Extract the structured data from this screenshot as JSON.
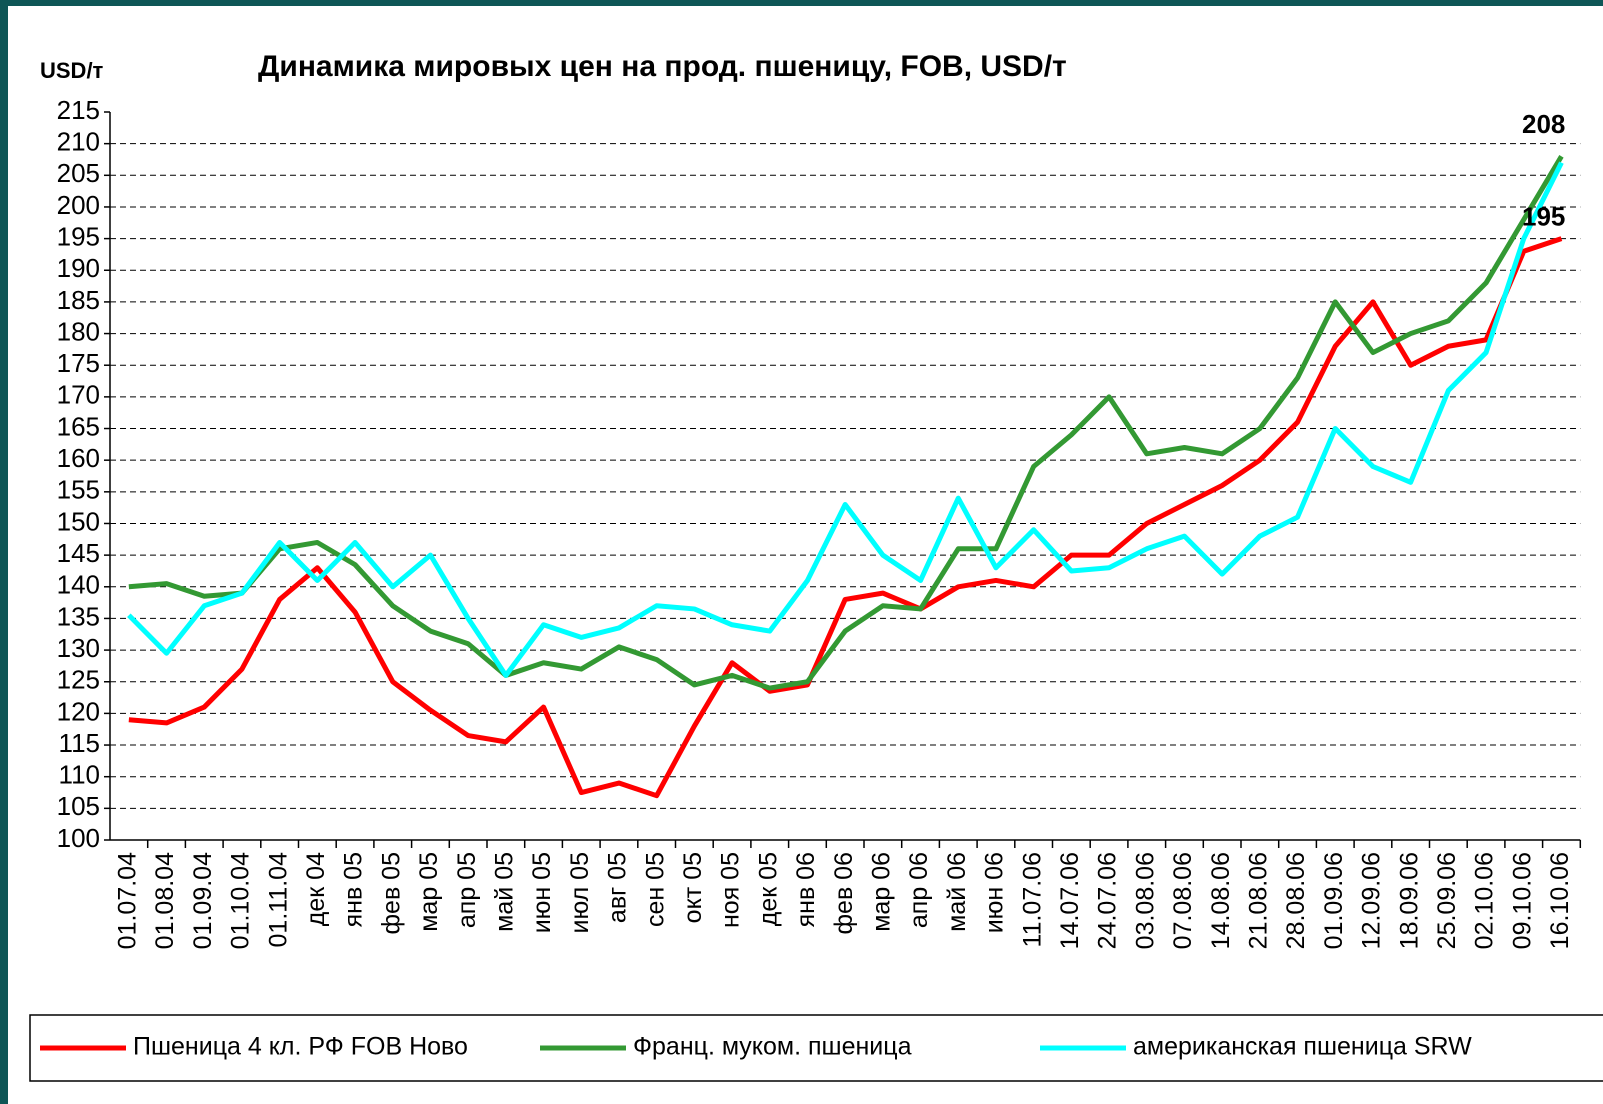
{
  "chart_data": {
    "type": "line",
    "title": "Динамика мировых цен на прод. пшеницу, FOB, USD/т",
    "y_label": "USD/т",
    "categories": [
      "01.07.04",
      "01.08.04",
      "01.09.04",
      "01.10.04",
      "01.11.04",
      "дек 04",
      "янв 05",
      "фев 05",
      "мар 05",
      "апр 05",
      "май 05",
      "июн 05",
      "июл 05",
      "авг 05",
      "сен 05",
      "окт 05",
      "ноя 05",
      "дек 05",
      "янв 06",
      "фев 06",
      "мар 06",
      "апр 06",
      "май 06",
      "июн 06",
      "11.07.06",
      "14.07.06",
      "24.07.06",
      "03.08.06",
      "07.08.06",
      "14.08.06",
      "21.08.06",
      "28.08.06",
      "01.09.06",
      "12.09.06",
      "18.09.06",
      "25.09.06",
      "02.10.06",
      "09.10.06",
      "16.10.06"
    ],
    "series": [
      {
        "name": "Пшеница 4 кл. РФ FOB Ново",
        "color": "#ff0000",
        "values": [
          119,
          118.5,
          121,
          127,
          138,
          143,
          136,
          125,
          120.5,
          116.5,
          115.5,
          121,
          107.5,
          109,
          107,
          118,
          128,
          123.5,
          124.5,
          138,
          139,
          136.5,
          140,
          141,
          140,
          145,
          145,
          150,
          153,
          156,
          160,
          166,
          178,
          185,
          175,
          178,
          179,
          193,
          195
        ]
      },
      {
        "name": "Франц. муком. пшеница",
        "color": "#339933",
        "values": [
          140,
          140.5,
          138.5,
          139,
          146,
          147,
          143.5,
          137,
          133,
          131,
          126,
          128,
          127,
          130.5,
          128.5,
          124.5,
          126,
          124,
          125,
          133,
          137,
          136.5,
          146,
          146,
          159,
          164,
          170,
          161,
          162,
          161,
          165,
          173,
          185,
          177,
          180,
          182,
          188,
          198,
          208
        ]
      },
      {
        "name": "американская пшеница SRW",
        "color": "#00ffff",
        "values": [
          135.5,
          129.5,
          137,
          139,
          147,
          141,
          147,
          140,
          145,
          135,
          126,
          134,
          132,
          133.5,
          137,
          136.5,
          134,
          133,
          141,
          153,
          145,
          141,
          154,
          143,
          149,
          142.5,
          143,
          146,
          148,
          142,
          148,
          151,
          165,
          159,
          156.5,
          171,
          177,
          195,
          207
        ]
      }
    ],
    "annotations": [
      "208",
      "195"
    ],
    "ylim": [
      100,
      215
    ],
    "yticks": [
      100,
      105,
      110,
      115,
      120,
      125,
      130,
      135,
      140,
      145,
      150,
      155,
      160,
      165,
      170,
      175,
      180,
      185,
      190,
      195,
      200,
      205,
      210,
      215
    ],
    "grid": true,
    "legend": "bottom"
  }
}
